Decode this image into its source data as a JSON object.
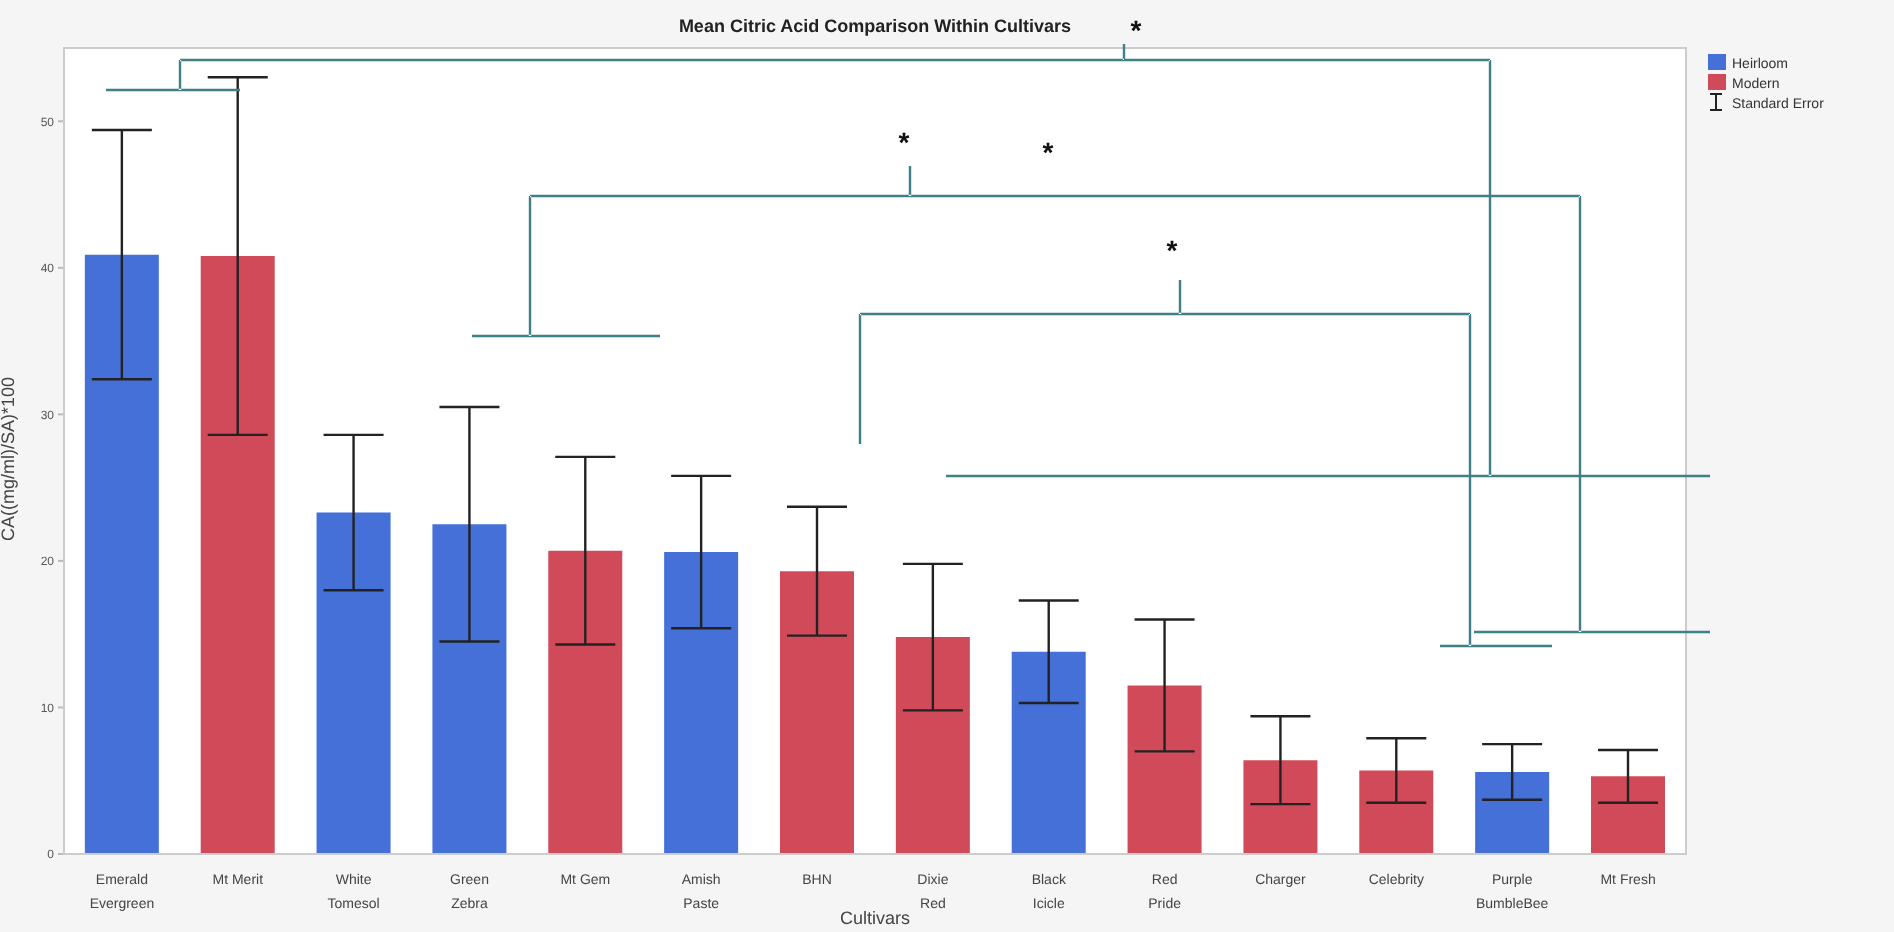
{
  "chart_data": {
    "type": "bar",
    "title": "Mean Citric Acid Comparison Within Cultivars",
    "xlabel": "Cultivars",
    "ylabel": "CA((mg/ml)/SA)*100",
    "categories": [
      "Emerald Evergreen",
      "Mt Merit",
      "White Tomesol",
      "Green Zebra",
      "Mt Gem",
      "Amish Paste",
      "BHN",
      "Dixie Red",
      "Black Icicle",
      "Red Pride",
      "Charger",
      "Celebrity",
      "Purple BumbleBee",
      "Mt Fresh"
    ],
    "stacked": true,
    "series": [
      {
        "name": "Heirloom",
        "color": "#4470d8",
        "values": [
          40.9,
          null,
          23.3,
          22.5,
          null,
          20.6,
          null,
          null,
          13.8,
          null,
          null,
          null,
          5.6,
          null
        ],
        "errors": [
          8.5,
          null,
          5.3,
          8.0,
          null,
          5.2,
          null,
          null,
          3.5,
          null,
          null,
          null,
          1.9,
          null
        ]
      },
      {
        "name": "Modern",
        "color": "#d14a5a",
        "values": [
          null,
          40.8,
          null,
          null,
          20.7,
          null,
          19.3,
          14.8,
          null,
          11.5,
          6.4,
          5.7,
          null,
          5.3
        ],
        "errors": [
          null,
          12.2,
          null,
          null,
          6.4,
          null,
          4.4,
          5.0,
          null,
          4.5,
          3.0,
          2.2,
          null,
          1.8
        ]
      }
    ],
    "ylim": [
      0,
      55
    ],
    "yticks": [
      0,
      10,
      20,
      30,
      40,
      50
    ],
    "legend": "top right",
    "annotations": [
      "Standard Error",
      "*",
      "*",
      "*",
      "*"
    ]
  }
}
